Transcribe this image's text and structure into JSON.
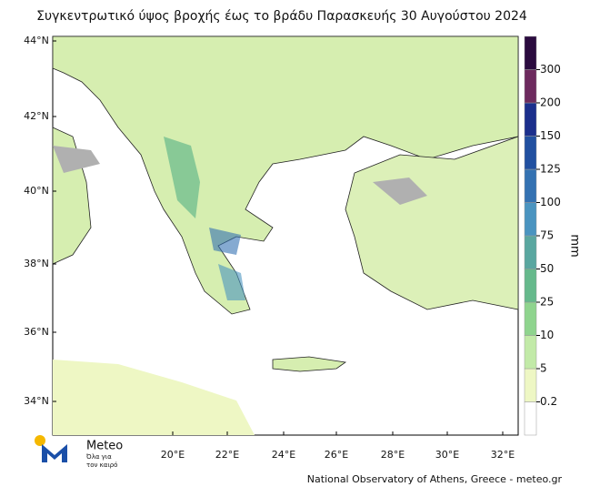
{
  "title": "Συγκεντρωτικό ύψος βροχής έως το βράδυ Παρασκευής 30 Αυγούστου 2024",
  "lat_labels": [
    "44°N",
    "42°N",
    "40°N",
    "38°N",
    "36°N",
    "34°N"
  ],
  "lon_labels": [
    "20°E",
    "22°E",
    "24°E",
    "26°E",
    "28°E",
    "30°E",
    "32°E"
  ],
  "colorbar": {
    "unit": "mm",
    "levels": [
      0.2,
      5,
      10,
      25,
      50,
      75,
      100,
      125,
      150,
      200,
      300
    ],
    "colors": [
      "#ffffff",
      "#eef7c4",
      "#c2eaa8",
      "#8fd48e",
      "#66b98c",
      "#5aa7a0",
      "#4a94c0",
      "#3472b2",
      "#2150a0",
      "#1b2f8c",
      "#6d2a5e",
      "#2b0b3f"
    ]
  },
  "logo": {
    "name": "Meteo",
    "tagline_1": "Όλα για",
    "tagline_2": "τον καιρό"
  },
  "credit": "National Observatory of Athens, Greece - meteo.gr"
}
